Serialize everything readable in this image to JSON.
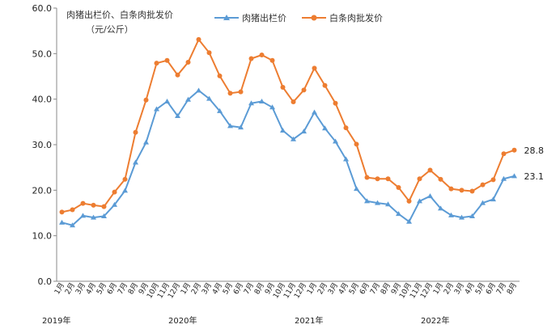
{
  "chart_data": {
    "type": "line",
    "title": "肉猪出栏价、白条肉批发价",
    "unit_label": "（元/公斤）",
    "ylim": [
      0,
      60
    ],
    "yticks": [
      "0.0",
      "10.0",
      "20.0",
      "30.0",
      "40.0",
      "50.0",
      "60.0"
    ],
    "grid": false,
    "legend": "top",
    "categories": [
      "1月",
      "2月",
      "3月",
      "4月",
      "5月",
      "6月",
      "7月",
      "8月",
      "9月",
      "10月",
      "11月",
      "12月",
      "1月",
      "2月",
      "3月",
      "4月",
      "5月",
      "6月",
      "7月",
      "8月",
      "9月",
      "10月",
      "11月",
      "12月",
      "1月",
      "2月",
      "3月",
      "4月",
      "5月",
      "6月",
      "7月",
      "8月",
      "9月",
      "10月",
      "11月",
      "12月",
      "1月",
      "2月",
      "3月",
      "4月",
      "5月",
      "6月",
      "7月",
      "8月"
    ],
    "years": [
      "2019年",
      "2020年",
      "2021年",
      "2022年"
    ],
    "series": [
      {
        "name": "肉猪出栏价",
        "color": "#5b9bd5",
        "marker": "triangle",
        "values": [
          12.9,
          12.3,
          14.4,
          14.0,
          14.3,
          16.8,
          19.9,
          26.1,
          30.5,
          37.8,
          39.5,
          36.3,
          39.9,
          41.9,
          40.1,
          37.4,
          34.1,
          33.8,
          39.1,
          39.5,
          38.2,
          33.1,
          31.2,
          32.9,
          37.1,
          33.6,
          30.7,
          26.8,
          20.3,
          17.6,
          17.2,
          16.9,
          14.8,
          13.1,
          17.6,
          18.7,
          16.0,
          14.5,
          14.0,
          14.3,
          17.2,
          18.0,
          22.5,
          23.1
        ],
        "end_label": "23.1"
      },
      {
        "name": "白条肉批发价",
        "color": "#ed7d31",
        "marker": "circle",
        "values": [
          15.2,
          15.7,
          17.1,
          16.7,
          16.4,
          19.6,
          22.4,
          32.7,
          39.8,
          47.9,
          48.5,
          45.3,
          48.1,
          53.1,
          50.2,
          45.1,
          41.3,
          41.6,
          48.9,
          49.7,
          48.5,
          42.6,
          39.4,
          42.0,
          46.8,
          43.0,
          39.1,
          33.7,
          30.1,
          22.8,
          22.5,
          22.5,
          20.6,
          17.6,
          22.5,
          24.4,
          22.4,
          20.3,
          20.0,
          19.8,
          21.2,
          22.3,
          28.0,
          28.8
        ],
        "end_label": "28.8"
      }
    ]
  }
}
